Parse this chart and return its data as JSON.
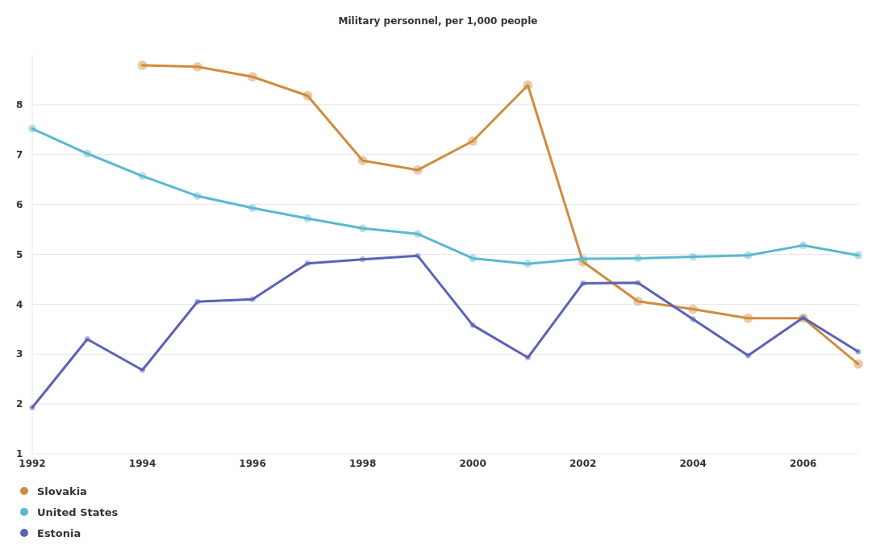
{
  "chart_data": {
    "type": "line",
    "title": "Military personnel, per 1,000 people",
    "x": [
      1992,
      1993,
      1994,
      1995,
      1996,
      1997,
      1998,
      1999,
      2000,
      2001,
      2002,
      2003,
      2004,
      2005,
      2006,
      2007
    ],
    "xlim": [
      1992,
      2007
    ],
    "xticks": [
      1992,
      1994,
      1996,
      1998,
      2000,
      2002,
      2004,
      2006
    ],
    "ylim": [
      1,
      9
    ],
    "yticks": [
      1,
      2,
      3,
      4,
      5,
      6,
      7,
      8
    ],
    "grid": "y",
    "legend": "bottom left",
    "marker": "circle",
    "line_style": "solid",
    "series": [
      {
        "name": "Slovakia",
        "color": "#d08c3e",
        "values": [
          null,
          null,
          8.79,
          8.76,
          8.56,
          8.18,
          6.88,
          6.69,
          7.27,
          8.39,
          4.85,
          4.06,
          3.9,
          3.72,
          3.72,
          2.8
        ]
      },
      {
        "name": "United States",
        "color": "#5bb8d1",
        "values": [
          7.52,
          7.02,
          6.57,
          6.17,
          5.93,
          5.72,
          5.52,
          5.41,
          4.92,
          4.81,
          4.91,
          4.92,
          4.95,
          4.98,
          5.18,
          4.98
        ]
      },
      {
        "name": "Estonia",
        "color": "#5a62b8",
        "values": [
          1.93,
          3.3,
          2.68,
          4.05,
          4.1,
          4.82,
          4.9,
          4.97,
          3.58,
          2.93,
          4.42,
          4.43,
          3.7,
          2.97,
          3.73,
          3.05
        ]
      }
    ]
  }
}
